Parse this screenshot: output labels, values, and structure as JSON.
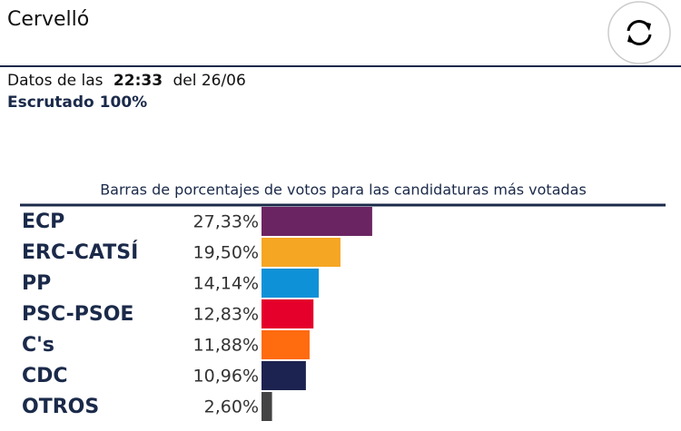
{
  "header": {
    "title": "Cervelló",
    "time_prefix": "Datos de las",
    "time": "22:33",
    "date_text": "del 26/06",
    "status": "Escrutado 100%"
  },
  "chart_data": {
    "type": "bar",
    "orientation": "horizontal",
    "title": "Barras de porcentajes de votos para las candidaturas más votadas",
    "categories": [
      "ECP",
      "ERC-CATSÍ",
      "PP",
      "PSC-PSOE",
      "C's",
      "CDC",
      "OTROS"
    ],
    "values": [
      27.33,
      19.5,
      14.14,
      12.83,
      11.88,
      10.96,
      2.6
    ],
    "value_labels": [
      "27,33%",
      "19,50%",
      "14,14%",
      "12,83%",
      "11,88%",
      "10,96%",
      "2,60%"
    ],
    "colors": [
      "#6b2462",
      "#f5a623",
      "#0f91d7",
      "#e4002b",
      "#ff6b0f",
      "#1c2350",
      "#444444"
    ]
  }
}
